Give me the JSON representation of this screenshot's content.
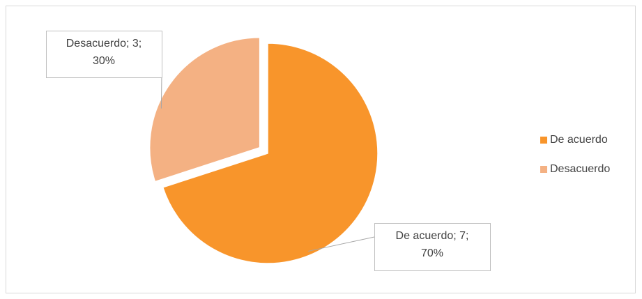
{
  "chart_data": {
    "type": "pie",
    "categories": [
      "De acuerdo",
      "Desacuerdo"
    ],
    "values": [
      7,
      3
    ],
    "value_labels": [
      [
        "De acuerdo; 7;",
        "70%"
      ],
      [
        "Desacuerdo; 3;",
        "30%"
      ]
    ],
    "colors": [
      "#f8952b",
      "#f4b183"
    ],
    "legend": "right"
  }
}
